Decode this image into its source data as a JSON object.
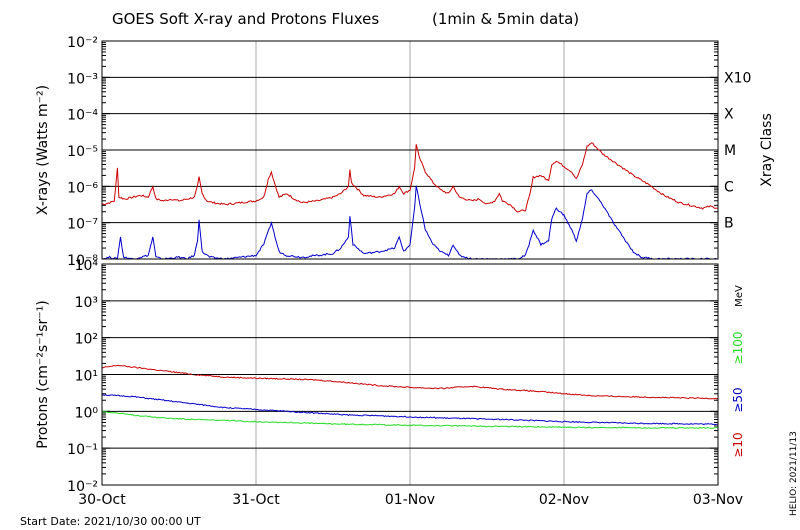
{
  "title": "GOES Soft X-ray and Protons Fluxes",
  "subtitle": "(1min & 5min data)",
  "start_date_label": "Start Date: 2021/10/30 00:00 UT",
  "helio_label": "HELIO: 2021/11/13",
  "colors": {
    "red": "#cc0000",
    "blue": "#0000cc",
    "green": "#22dd22",
    "grid": "#000000",
    "vgrid": "#aaaaaa"
  },
  "chart_data": [
    {
      "type": "line",
      "panel": "xray",
      "ylabel": "X-rays (Watts m⁻²)",
      "ylabel_right": "Xray Class",
      "yscale": "log",
      "ylim_exp": [
        -8,
        -2
      ],
      "ytick_labels": [
        "10⁻⁸",
        "10⁻⁷",
        "10⁻⁶",
        "10⁻⁵",
        "10⁻⁴",
        "10⁻³",
        "10⁻²"
      ],
      "class_labels": [
        {
          "label": "B",
          "exp": -7
        },
        {
          "label": "C",
          "exp": -6
        },
        {
          "label": "M",
          "exp": -5
        },
        {
          "label": "X",
          "exp": -4
        },
        {
          "label": "X10",
          "exp": -3
        }
      ],
      "x_days": [
        0,
        4
      ],
      "series": [
        {
          "color": "red",
          "points": [
            [
              0.0,
              -6.5
            ],
            [
              0.05,
              -6.45
            ],
            [
              0.08,
              -6.4
            ],
            [
              0.1,
              -5.5
            ],
            [
              0.11,
              -6.3
            ],
            [
              0.15,
              -6.35
            ],
            [
              0.2,
              -6.3
            ],
            [
              0.25,
              -6.25
            ],
            [
              0.3,
              -6.3
            ],
            [
              0.33,
              -6.0
            ],
            [
              0.35,
              -6.35
            ],
            [
              0.4,
              -6.4
            ],
            [
              0.45,
              -6.35
            ],
            [
              0.5,
              -6.4
            ],
            [
              0.55,
              -6.35
            ],
            [
              0.6,
              -6.3
            ],
            [
              0.62,
              -6.0
            ],
            [
              0.63,
              -5.75
            ],
            [
              0.65,
              -6.2
            ],
            [
              0.68,
              -6.4
            ],
            [
              0.72,
              -6.45
            ],
            [
              0.8,
              -6.5
            ],
            [
              0.9,
              -6.45
            ],
            [
              1.0,
              -6.4
            ],
            [
              1.05,
              -6.3
            ],
            [
              1.08,
              -5.8
            ],
            [
              1.1,
              -5.6
            ],
            [
              1.12,
              -5.9
            ],
            [
              1.15,
              -6.3
            ],
            [
              1.2,
              -6.2
            ],
            [
              1.25,
              -6.35
            ],
            [
              1.3,
              -6.45
            ],
            [
              1.4,
              -6.4
            ],
            [
              1.5,
              -6.3
            ],
            [
              1.55,
              -6.2
            ],
            [
              1.6,
              -6.0
            ],
            [
              1.61,
              -5.55
            ],
            [
              1.62,
              -5.9
            ],
            [
              1.7,
              -6.25
            ],
            [
              1.8,
              -6.3
            ],
            [
              1.9,
              -6.2
            ],
            [
              1.93,
              -6.0
            ],
            [
              1.96,
              -6.2
            ],
            [
              2.0,
              -6.1
            ],
            [
              2.03,
              -5.5
            ],
            [
              2.04,
              -4.85
            ],
            [
              2.06,
              -5.2
            ],
            [
              2.1,
              -5.6
            ],
            [
              2.15,
              -5.9
            ],
            [
              2.2,
              -6.1
            ],
            [
              2.25,
              -6.2
            ],
            [
              2.28,
              -6.0
            ],
            [
              2.32,
              -6.3
            ],
            [
              2.4,
              -6.4
            ],
            [
              2.45,
              -6.35
            ],
            [
              2.5,
              -6.5
            ],
            [
              2.55,
              -6.4
            ],
            [
              2.58,
              -6.2
            ],
            [
              2.6,
              -6.4
            ],
            [
              2.65,
              -6.5
            ],
            [
              2.7,
              -6.7
            ],
            [
              2.75,
              -6.65
            ],
            [
              2.78,
              -6.2
            ],
            [
              2.8,
              -5.75
            ],
            [
              2.85,
              -5.7
            ],
            [
              2.9,
              -5.85
            ],
            [
              2.92,
              -5.4
            ],
            [
              2.95,
              -5.3
            ],
            [
              3.0,
              -5.45
            ],
            [
              3.05,
              -5.6
            ],
            [
              3.08,
              -5.8
            ],
            [
              3.12,
              -5.4
            ],
            [
              3.15,
              -4.9
            ],
            [
              3.18,
              -4.8
            ],
            [
              3.25,
              -5.1
            ],
            [
              3.35,
              -5.4
            ],
            [
              3.45,
              -5.7
            ],
            [
              3.55,
              -5.95
            ],
            [
              3.6,
              -6.1
            ],
            [
              3.65,
              -6.25
            ],
            [
              3.7,
              -6.35
            ],
            [
              3.75,
              -6.45
            ],
            [
              3.8,
              -6.5
            ],
            [
              3.85,
              -6.55
            ],
            [
              3.9,
              -6.6
            ],
            [
              3.95,
              -6.55
            ],
            [
              4.0,
              -6.6
            ]
          ]
        },
        {
          "color": "blue",
          "points": [
            [
              0.0,
              -8.0
            ],
            [
              0.05,
              -7.95
            ],
            [
              0.1,
              -8.0
            ],
            [
              0.12,
              -7.4
            ],
            [
              0.14,
              -7.95
            ],
            [
              0.2,
              -8.0
            ],
            [
              0.3,
              -7.9
            ],
            [
              0.33,
              -7.4
            ],
            [
              0.35,
              -7.95
            ],
            [
              0.4,
              -8.0
            ],
            [
              0.5,
              -7.95
            ],
            [
              0.55,
              -8.0
            ],
            [
              0.6,
              -7.9
            ],
            [
              0.62,
              -7.5
            ],
            [
              0.63,
              -6.9
            ],
            [
              0.65,
              -7.8
            ],
            [
              0.7,
              -7.95
            ],
            [
              0.8,
              -8.0
            ],
            [
              0.9,
              -7.95
            ],
            [
              1.0,
              -7.9
            ],
            [
              1.05,
              -7.6
            ],
            [
              1.1,
              -7.0
            ],
            [
              1.13,
              -7.5
            ],
            [
              1.15,
              -7.8
            ],
            [
              1.2,
              -7.9
            ],
            [
              1.3,
              -7.95
            ],
            [
              1.4,
              -7.9
            ],
            [
              1.5,
              -7.85
            ],
            [
              1.55,
              -7.7
            ],
            [
              1.6,
              -7.4
            ],
            [
              1.61,
              -6.8
            ],
            [
              1.63,
              -7.6
            ],
            [
              1.7,
              -7.85
            ],
            [
              1.8,
              -7.8
            ],
            [
              1.9,
              -7.7
            ],
            [
              1.93,
              -7.4
            ],
            [
              1.96,
              -7.8
            ],
            [
              2.0,
              -7.6
            ],
            [
              2.03,
              -6.6
            ],
            [
              2.04,
              -6.0
            ],
            [
              2.07,
              -6.6
            ],
            [
              2.1,
              -7.2
            ],
            [
              2.15,
              -7.6
            ],
            [
              2.2,
              -7.8
            ],
            [
              2.25,
              -7.9
            ],
            [
              2.28,
              -7.6
            ],
            [
              2.32,
              -7.9
            ],
            [
              2.4,
              -8.0
            ],
            [
              2.5,
              -8.0
            ],
            [
              2.6,
              -8.0
            ],
            [
              2.7,
              -8.0
            ],
            [
              2.75,
              -7.9
            ],
            [
              2.78,
              -7.5
            ],
            [
              2.8,
              -7.2
            ],
            [
              2.85,
              -7.6
            ],
            [
              2.9,
              -7.5
            ],
            [
              2.92,
              -6.9
            ],
            [
              2.95,
              -6.6
            ],
            [
              3.0,
              -6.8
            ],
            [
              3.05,
              -7.2
            ],
            [
              3.08,
              -7.5
            ],
            [
              3.12,
              -6.9
            ],
            [
              3.15,
              -6.2
            ],
            [
              3.18,
              -6.1
            ],
            [
              3.25,
              -6.5
            ],
            [
              3.32,
              -7.0
            ],
            [
              3.4,
              -7.5
            ],
            [
              3.45,
              -7.8
            ],
            [
              3.5,
              -7.95
            ],
            [
              3.6,
              -8.0
            ],
            [
              3.7,
              -8.0
            ],
            [
              3.8,
              -8.0
            ],
            [
              3.9,
              -8.0
            ],
            [
              4.0,
              -8.0
            ]
          ]
        }
      ]
    },
    {
      "type": "line",
      "panel": "protons",
      "ylabel": "Protons (cm⁻²s⁻¹sr⁻¹)",
      "yscale": "log",
      "ylim_exp": [
        -2,
        4
      ],
      "ytick_labels": [
        "10⁻²",
        "10⁻¹",
        "10⁰",
        "10¹",
        "10²",
        "10³",
        "10⁴"
      ],
      "unit_label": "MeV",
      "threshold_exp": 1,
      "x_days": [
        0,
        4
      ],
      "xtick_labels": [
        "30-Oct",
        "31-Oct",
        "01-Nov",
        "02-Nov",
        "03-Nov"
      ],
      "series": [
        {
          "name": "≥10",
          "color": "red",
          "points": [
            [
              0.0,
              1.18
            ],
            [
              0.1,
              1.25
            ],
            [
              0.2,
              1.2
            ],
            [
              0.3,
              1.15
            ],
            [
              0.4,
              1.1
            ],
            [
              0.6,
              1.0
            ],
            [
              0.8,
              0.93
            ],
            [
              1.0,
              0.9
            ],
            [
              1.2,
              0.88
            ],
            [
              1.4,
              0.85
            ],
            [
              1.6,
              0.78
            ],
            [
              1.8,
              0.7
            ],
            [
              2.0,
              0.65
            ],
            [
              2.2,
              0.62
            ],
            [
              2.4,
              0.68
            ],
            [
              2.6,
              0.6
            ],
            [
              2.8,
              0.55
            ],
            [
              3.0,
              0.48
            ],
            [
              3.2,
              0.42
            ],
            [
              3.4,
              0.4
            ],
            [
              3.6,
              0.38
            ],
            [
              3.8,
              0.36
            ],
            [
              4.0,
              0.35
            ]
          ]
        },
        {
          "name": "≥50",
          "color": "blue",
          "points": [
            [
              0.0,
              0.45
            ],
            [
              0.2,
              0.4
            ],
            [
              0.4,
              0.3
            ],
            [
              0.6,
              0.2
            ],
            [
              0.8,
              0.1
            ],
            [
              1.0,
              0.05
            ],
            [
              1.2,
              0.0
            ],
            [
              1.4,
              -0.05
            ],
            [
              1.6,
              -0.1
            ],
            [
              1.8,
              -0.12
            ],
            [
              2.0,
              -0.15
            ],
            [
              2.2,
              -0.18
            ],
            [
              2.4,
              -0.2
            ],
            [
              2.6,
              -0.22
            ],
            [
              2.8,
              -0.25
            ],
            [
              3.0,
              -0.28
            ],
            [
              3.2,
              -0.3
            ],
            [
              3.4,
              -0.32
            ],
            [
              3.6,
              -0.33
            ],
            [
              3.8,
              -0.34
            ],
            [
              4.0,
              -0.35
            ]
          ]
        },
        {
          "name": "≥100",
          "color": "green",
          "points": [
            [
              0.0,
              0.0
            ],
            [
              0.2,
              -0.1
            ],
            [
              0.4,
              -0.18
            ],
            [
              0.6,
              -0.22
            ],
            [
              0.8,
              -0.25
            ],
            [
              1.0,
              -0.28
            ],
            [
              1.2,
              -0.3
            ],
            [
              1.4,
              -0.33
            ],
            [
              1.6,
              -0.35
            ],
            [
              1.8,
              -0.36
            ],
            [
              2.0,
              -0.38
            ],
            [
              2.2,
              -0.39
            ],
            [
              2.4,
              -0.4
            ],
            [
              2.6,
              -0.41
            ],
            [
              2.8,
              -0.42
            ],
            [
              3.0,
              -0.43
            ],
            [
              3.2,
              -0.44
            ],
            [
              3.4,
              -0.44
            ],
            [
              3.6,
              -0.45
            ],
            [
              3.8,
              -0.45
            ],
            [
              4.0,
              -0.45
            ]
          ]
        }
      ]
    }
  ]
}
